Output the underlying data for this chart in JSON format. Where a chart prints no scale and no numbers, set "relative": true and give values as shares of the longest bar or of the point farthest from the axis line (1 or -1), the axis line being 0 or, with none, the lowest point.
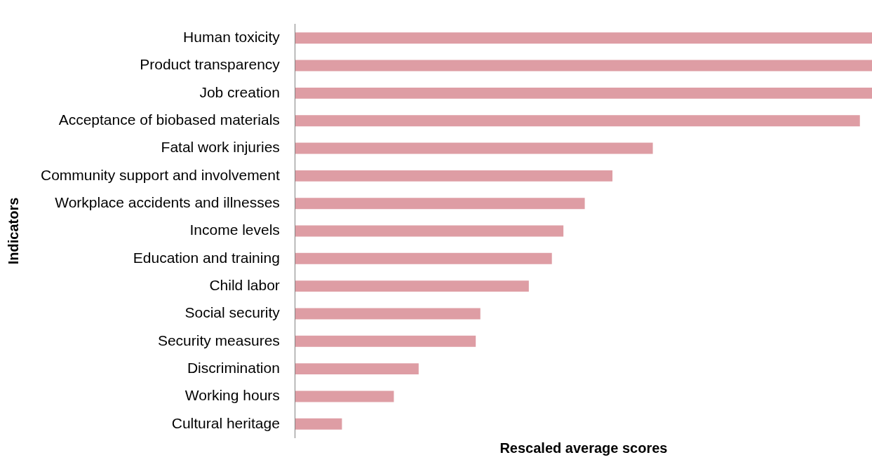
{
  "chart_data": {
    "type": "bar",
    "orientation": "horizontal",
    "relative": true,
    "xlabel": "Rescaled average scores",
    "ylabel": "Indicators",
    "categories": [
      "Human toxicity",
      "Product transparency",
      "Job creation",
      "Acceptance of biobased materials",
      "Fatal work injuries",
      "Community support and involvement",
      "Workplace accidents and illnesses",
      "Income levels",
      "Education and training",
      "Child labor",
      "Social security",
      "Security measures",
      "Discrimination",
      "Working hours",
      "Cultural heritage"
    ],
    "values": [
      1,
      1,
      1,
      0.979,
      0.62,
      0.55,
      0.502,
      0.465,
      0.445,
      0.405,
      0.321,
      0.313,
      0.214,
      0.171,
      0.081
    ],
    "color": "#de9da4",
    "grid": false,
    "legend": false
  }
}
